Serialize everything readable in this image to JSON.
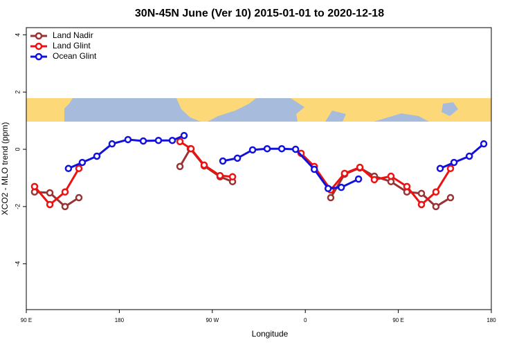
{
  "chart_data": {
    "type": "line",
    "title": "30N-45N June (Ver 10)   2015-01-01 to 2020-12-18",
    "x_label": "Longitude",
    "y_label": "XCO2 - MLO trend (ppm)",
    "xlim": [
      90,
      540
    ],
    "xticks": [
      {
        "value": 90,
        "label": "90 E"
      },
      {
        "value": 180,
        "label": "180"
      },
      {
        "value": 270,
        "label": "90 W"
      },
      {
        "value": 360,
        "label": "0"
      },
      {
        "value": 450,
        "label": "90 E"
      },
      {
        "value": 540,
        "label": "180"
      }
    ],
    "ylim": [
      -5.6,
      4.25
    ],
    "yticks": [
      4,
      2,
      0,
      -2,
      -4
    ],
    "legend": "top-left",
    "series": [
      {
        "name": "Land Nadir",
        "color": "#993333",
        "x": [
          98,
          112.8,
          127.5,
          140.9,
          null,
          238.7,
          248.7,
          262.1,
          277.5,
          289.6,
          null,
          384.6,
          398,
          412.8,
          426.8,
          442.9,
          458.3,
          472.4,
          486.4,
          500.5
        ],
        "values": [
          -1.49,
          -1.52,
          -2.0,
          -1.69,
          null,
          -0.6,
          0.02,
          -0.58,
          -0.96,
          -1.13,
          null,
          -1.69,
          -0.87,
          -0.65,
          -0.94,
          -1.13,
          -1.49,
          -1.54,
          -2.0,
          -1.69
        ]
      },
      {
        "name": "Land Glint",
        "color": "#ee1111",
        "x": [
          98,
          112.8,
          127.5,
          140.9,
          null,
          238.7,
          249.4,
          262.1,
          277.5,
          289.6,
          null,
          355.9,
          368.7,
          384.6,
          398,
          412.8,
          426.8,
          442.9,
          458.3,
          472.4,
          486.4,
          500.5
        ],
        "values": [
          -1.3,
          -1.93,
          -1.49,
          -0.67,
          null,
          0.27,
          0.02,
          -0.55,
          -0.92,
          -0.96,
          null,
          -0.14,
          -0.6,
          -1.42,
          -0.84,
          -0.63,
          -1.06,
          -0.94,
          -1.3,
          -1.93,
          -1.49,
          -0.67
        ]
      },
      {
        "name": "Ocean Glint",
        "color": "#1111dd",
        "x": [
          130.8,
          144.2,
          158.3,
          173.0,
          188.4,
          203.2,
          217.9,
          231.3,
          242.7,
          null,
          280.2,
          294.3,
          309.0,
          323.1,
          337.2,
          350.6,
          368.7,
          382.1,
          394.8,
          411.5,
          null,
          490.5,
          503.9,
          518.7,
          532.7
        ],
        "values": [
          -0.67,
          -0.46,
          -0.24,
          0.19,
          0.34,
          0.29,
          0.31,
          0.31,
          0.48,
          null,
          -0.41,
          -0.31,
          -0.02,
          0.02,
          0.02,
          0,
          -0.7,
          -1.37,
          -1.33,
          -1.04,
          null,
          -0.67,
          -0.46,
          -0.24,
          0.19
        ]
      }
    ]
  }
}
